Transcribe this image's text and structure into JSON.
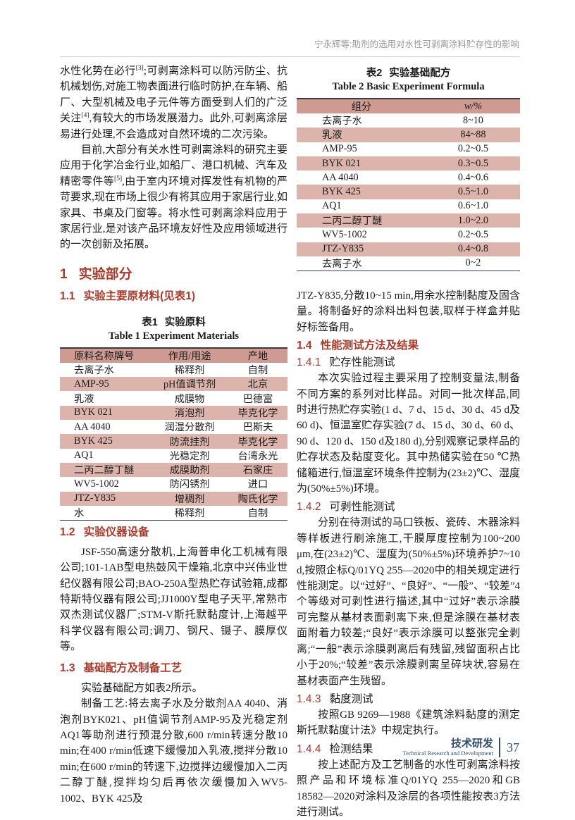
{
  "header": {
    "running_title": "宁永辉等:助剂的选用对水性可剥离涂料贮存性的影响"
  },
  "intro": {
    "p1": {
      "t1": "水性化势在必行",
      "sup1": "[3]",
      "t2": ";可剥离涂料可以防污防尘、抗机械划伤,对施工物表面进行临时防护,在车辆、船厂、大型机械及电子元件等方面受到人们的广泛关注",
      "sup2": "[4]",
      "t3": ",有较大的市场发展潜力。此外,可剥离涂层易进行处理,不会造成对自然环境的二次污染。"
    },
    "p2": {
      "t1": "目前,大部分有关水性可剥离涂料的研究主要应用于化学冶金行业,如船厂、港口机械、汽车及精密零件等",
      "sup1": "[5]",
      "t2": ",由于室内环境对挥发性有机物的严苛要求,现在市场上很少有将其应用于家居行业,如家具、书桌及门窗等。将水性可剥离涂料应用于家居行业,是对该产品环境友好性及应用领域进行的一次创新及拓展。"
    }
  },
  "sections": {
    "s1": {
      "num": "1",
      "title": "实验部分"
    },
    "s11": {
      "num": "1.1",
      "title": "实验主要原材料(见表1)"
    },
    "s12": {
      "num": "1.2",
      "title": "实验仪器设备"
    },
    "s13": {
      "num": "1.3",
      "title": "基础配方及制备工艺"
    },
    "s14": {
      "num": "1.4",
      "title": "性能测试方法及结果"
    },
    "s141": {
      "num": "1.4.1",
      "title": "贮存性能测试"
    },
    "s142": {
      "num": "1.4.2",
      "title": "可剥性能测试"
    },
    "s143": {
      "num": "1.4.3",
      "title": "黏度测试"
    },
    "s144": {
      "num": "1.4.4",
      "title": "检测结果"
    }
  },
  "paragraphs": {
    "s12_body": "JSF-550高速分散机,上海普申化工机械有限公司;101-1AB型电热鼓风干燥箱,北京中兴伟业世纪仪器有限公司;BAO-250A型热贮存试验箱,成都特斯特仪器有限公司;JJ1000Y型电子天平,常熟市双杰测试仪器厂;STM-V斯托默黏度计,上海越平科学仪器有限公司;调刀、钢尺、镊子、膜厚仪等。",
    "s13_p1": "实验基础配方如表2所示。",
    "s13_p2": "制备工艺:将去离子水及分散剂AA 4040、消泡剂BYK021、pH值调节剂AMP-95及光稳定剂AQ1等助剂进行预混分散,600 r/min转速分散10 min;在400 r/min低速下缓慢加入乳液,搅拌分散10 min;在600 r/min的转速下,边搅拌边缓慢加入二丙二醇丁醚,搅拌均匀后再依次缓慢加入WV5-1002、BYK 425及",
    "right_top": "JTZ-Y835,分散10~15 min,用余水控制黏度及固含量。将制备好的涂料出料包装,取样于样盒并贴好标签备用。",
    "s141_body": "本次实验过程主要采用了控制变量法,制备不同方案的系列对比样品。对同一批次样品,同时进行热贮存实验(1 d、7 d、15 d、30 d、45 d及60 d)、恒温室贮存实验(7 d、15 d、30 d、60 d、90 d、120 d、150 d及180 d),分别观察记录样品的贮存状态及黏度变化。其中热储实验在50 ℃热储箱进行,恒温室环境条件控制为(23±2)℃、湿度为(50%±5%)环境。",
    "s142_body": "分别在待测试的马口铁板、瓷砖、木器涂料等样板进行刷涂施工,干膜厚度控制为100~200 μm,在(23±2)℃、湿度为(50%±5%)环境养护7~10 d,按照企标Q/01YQ 255—2020中的相关规定进行性能测定。以“过好”、“良好”、“一般”、“较差”4个等级对可剥性进行描述,其中“过好”表示涂膜可完整从基材表面剥离下来,但是涂膜在基材表面附着力较差;“良好”表示涂膜可以整张完全剥离;“一般”表示涂膜剥离后有残留,残留面积占比小于20%;“较差”表示涂膜剥离呈碎块状,容易在基材表面产生残留。",
    "s143_body": "按照GB 9269—1988《建筑涂料黏度的测定 斯托默黏度计法》中规定执行。",
    "s144_body": "按上述配方及工艺制备的水性可剥离涂料按照产品和环境标准Q/01YQ 255—2020和GB 18582—2020对涂料及涂层的各项性能按表3方法进行测试。"
  },
  "table1": {
    "caption_num_zh": "表1",
    "caption_title_zh": "实验原料",
    "caption_en": "Table 1  Experiment Materials",
    "headers": [
      "原料名称牌号",
      "作用/用途",
      "产地"
    ],
    "rows": [
      [
        "去离子水",
        "稀释剂",
        "自制"
      ],
      [
        "AMP-95",
        "pH值调节剂",
        "北京"
      ],
      [
        "乳液",
        "成膜物",
        "巴德富"
      ],
      [
        "BYK 021",
        "消泡剂",
        "毕克化学"
      ],
      [
        "AA 4040",
        "润湿分散剂",
        "巴斯夫"
      ],
      [
        "BYK 425",
        "防流挂剂",
        "毕克化学"
      ],
      [
        "AQ1",
        "光稳定剂",
        "台湾永光"
      ],
      [
        "二丙二醇丁醚",
        "成膜助剂",
        "石家庄"
      ],
      [
        "WV5-1002",
        "防闪锈剂",
        "进口"
      ],
      [
        "JTZ-Y835",
        "增稠剂",
        "陶氏化学"
      ],
      [
        "水",
        "稀释剂",
        "自制"
      ]
    ]
  },
  "table2": {
    "caption_num_zh": "表2",
    "caption_title_zh": "实验基础配方",
    "caption_en": "Table 2  Basic Experiment Formula",
    "headers": [
      "组分",
      "w/%"
    ],
    "rows": [
      [
        "去离子水",
        "8~10"
      ],
      [
        "乳液",
        "84~88"
      ],
      [
        "AMP-95",
        "0.2~0.5"
      ],
      [
        "BYK 021",
        "0.3~0.5"
      ],
      [
        "AA 4040",
        "0.4~0.6"
      ],
      [
        "BYK 425",
        "0.5~1.0"
      ],
      [
        "AQ1",
        "0.6~1.0"
      ],
      [
        "二丙二醇丁醚",
        "1.0~2.0"
      ],
      [
        "WV5-1002",
        "0.2~0.5"
      ],
      [
        "JTZ-Y835",
        "0.4~0.8"
      ],
      [
        "去离子水",
        "0~2"
      ]
    ]
  },
  "footer": {
    "label_zh": "技术研发",
    "label_en": "Technical Research and Development",
    "page_number": "37"
  },
  "colors": {
    "heading_red": "#a83a2c",
    "table_header_pink": "#cf9a91",
    "table_stripe_pink": "#dcb4ac",
    "footer_navy": "#2f4d6e"
  }
}
